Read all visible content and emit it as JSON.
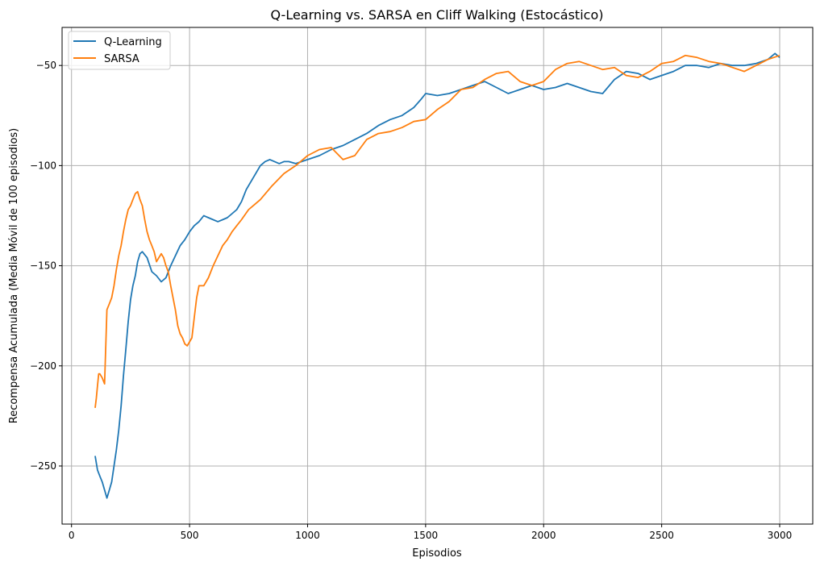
{
  "chart_data": {
    "type": "line",
    "title": "Q-Learning vs. SARSA en Cliff Walking (Estocástico)",
    "xlabel": "Episodios",
    "ylabel": "Recompensa Acumulada (Media Móvil de 100 episodios)",
    "xlim": [
      -40,
      3140
    ],
    "ylim": [
      -279,
      -31
    ],
    "xticks": [
      0,
      500,
      1000,
      1500,
      2000,
      2500,
      3000
    ],
    "yticks": [
      -250,
      -200,
      -150,
      -100,
      -50
    ],
    "grid": true,
    "legend_position": "top-left",
    "series": [
      {
        "name": "Q-Learning",
        "color": "#1f77b4",
        "x": [
          100,
          110,
          120,
          130,
          140,
          150,
          160,
          170,
          180,
          190,
          200,
          210,
          220,
          230,
          240,
          250,
          260,
          270,
          280,
          290,
          300,
          320,
          340,
          360,
          380,
          400,
          420,
          440,
          460,
          480,
          500,
          520,
          540,
          560,
          580,
          600,
          620,
          640,
          660,
          680,
          700,
          720,
          740,
          760,
          780,
          800,
          820,
          840,
          860,
          880,
          900,
          920,
          950,
          1000,
          1050,
          1100,
          1150,
          1200,
          1250,
          1300,
          1350,
          1400,
          1450,
          1480,
          1500,
          1550,
          1600,
          1650,
          1700,
          1750,
          1800,
          1850,
          1900,
          1950,
          2000,
          2050,
          2100,
          2150,
          2200,
          2250,
          2300,
          2350,
          2400,
          2450,
          2500,
          2550,
          2600,
          2650,
          2700,
          2750,
          2800,
          2850,
          2900,
          2950,
          2980,
          3000
        ],
        "y": [
          -245,
          -252,
          -255,
          -258,
          -262,
          -266,
          -262,
          -258,
          -250,
          -242,
          -232,
          -220,
          -205,
          -192,
          -178,
          -167,
          -160,
          -155,
          -148,
          -144,
          -143,
          -146,
          -153,
          -155,
          -158,
          -156,
          -150,
          -145,
          -140,
          -137,
          -133,
          -130,
          -128,
          -125,
          -126,
          -127,
          -128,
          -127,
          -126,
          -124,
          -122,
          -118,
          -112,
          -108,
          -104,
          -100,
          -98,
          -97,
          -98,
          -99,
          -98,
          -98,
          -99,
          -97,
          -95,
          -92,
          -90,
          -87,
          -84,
          -80,
          -77,
          -75,
          -71,
          -67,
          -64,
          -65,
          -64,
          -62,
          -60,
          -58,
          -61,
          -64,
          -62,
          -60,
          -62,
          -61,
          -59,
          -61,
          -63,
          -64,
          -57,
          -53,
          -54,
          -57,
          -55,
          -53,
          -50,
          -50,
          -51,
          -49,
          -50,
          -50,
          -49,
          -47,
          -44,
          -46
        ]
      },
      {
        "name": "SARSA",
        "color": "#ff7f0e",
        "x": [
          100,
          105,
          110,
          115,
          120,
          130,
          140,
          150,
          160,
          170,
          180,
          190,
          200,
          210,
          220,
          230,
          240,
          250,
          260,
          270,
          280,
          290,
          300,
          310,
          320,
          330,
          340,
          350,
          360,
          370,
          380,
          390,
          400,
          410,
          420,
          430,
          440,
          450,
          460,
          470,
          480,
          490,
          500,
          510,
          520,
          530,
          540,
          560,
          580,
          600,
          620,
          640,
          660,
          680,
          700,
          720,
          750,
          800,
          850,
          900,
          950,
          1000,
          1050,
          1100,
          1150,
          1200,
          1250,
          1300,
          1350,
          1400,
          1450,
          1500,
          1550,
          1600,
          1650,
          1700,
          1750,
          1800,
          1850,
          1900,
          1950,
          2000,
          2050,
          2100,
          2150,
          2200,
          2250,
          2300,
          2350,
          2400,
          2450,
          2500,
          2550,
          2600,
          2650,
          2700,
          2750,
          2800,
          2850,
          2900,
          2950,
          3000
        ],
        "y": [
          -221,
          -216,
          -210,
          -204,
          -204,
          -206,
          -209,
          -172,
          -169,
          -166,
          -160,
          -152,
          -145,
          -140,
          -133,
          -127,
          -122,
          -120,
          -117,
          -114,
          -113,
          -117,
          -120,
          -127,
          -133,
          -137,
          -140,
          -143,
          -148,
          -146,
          -144,
          -146,
          -150,
          -153,
          -160,
          -166,
          -172,
          -180,
          -184,
          -186,
          -189,
          -190,
          -188,
          -186,
          -176,
          -166,
          -160,
          -160,
          -156,
          -150,
          -145,
          -140,
          -137,
          -133,
          -130,
          -127,
          -122,
          -117,
          -110,
          -104,
          -100,
          -95,
          -92,
          -91,
          -97,
          -95,
          -87,
          -84,
          -83,
          -81,
          -78,
          -77,
          -72,
          -68,
          -62,
          -61,
          -57,
          -54,
          -53,
          -58,
          -60,
          -58,
          -52,
          -49,
          -48,
          -50,
          -52,
          -51,
          -55,
          -56,
          -53,
          -49,
          -48,
          -45,
          -46,
          -48,
          -49,
          -51,
          -53,
          -50,
          -47,
          -45
        ]
      }
    ]
  }
}
